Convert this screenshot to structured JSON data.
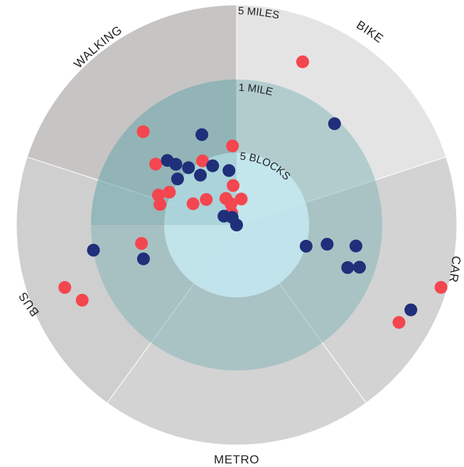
{
  "chart_data": {
    "type": "scatter",
    "subtype": "radial-sector-scatter",
    "categories": [
      "WALKING",
      "BIKE",
      "CAR",
      "METRO",
      "BUS"
    ],
    "ring_labels": [
      "5 BLOCKS",
      "1 MILE",
      "5 MILES"
    ],
    "colors": {
      "red": "#f4464f",
      "blue": "#1f2f7a",
      "sector_light": "#e4e4e4",
      "sector_mid": "#d3d3d3",
      "sector_dark": "#c7c4c4",
      "sector_bus": "#cfcfcf",
      "ring_mid": "#7fb4b8",
      "ring_inner": "#c6e9f1"
    },
    "points": [
      {
        "category": "WALKING",
        "color": "red",
        "r": 0.6,
        "angle": -45
      },
      {
        "category": "WALKING",
        "color": "red",
        "r": 0.46,
        "angle": -53
      },
      {
        "category": "WALKING",
        "color": "blue",
        "r": 0.39,
        "angle": -45
      },
      {
        "category": "WALKING",
        "color": "blue",
        "r": 0.44,
        "angle": -21
      },
      {
        "category": "WALKING",
        "color": "red",
        "r": 0.36,
        "angle": -3
      },
      {
        "category": "WALKING",
        "color": "blue",
        "r": 0.43,
        "angle": -47
      },
      {
        "category": "WALKING",
        "color": "red",
        "r": 0.33,
        "angle": -28
      },
      {
        "category": "WALKING",
        "color": "blue",
        "r": 0.34,
        "angle": -40
      },
      {
        "category": "WALKING",
        "color": "blue",
        "r": 0.29,
        "angle": -22
      },
      {
        "category": "WALKING",
        "color": "blue",
        "r": 0.34,
        "angle": -52
      },
      {
        "category": "WALKING",
        "color": "blue",
        "r": 0.28,
        "angle": -36
      },
      {
        "category": "WALKING",
        "color": "blue",
        "r": 0.25,
        "angle": -8
      },
      {
        "category": "WALKING",
        "color": "red",
        "r": 0.38,
        "angle": -69
      },
      {
        "category": "WALKING",
        "color": "red",
        "r": 0.34,
        "angle": -64
      },
      {
        "category": "WALKING",
        "color": "red",
        "r": 0.36,
        "angle": -75
      },
      {
        "category": "WALKING",
        "color": "red",
        "r": 0.22,
        "angle": -64
      },
      {
        "category": "WALKING",
        "color": "red",
        "r": 0.18,
        "angle": -5
      },
      {
        "category": "WALKING",
        "color": "red",
        "r": 0.13,
        "angle": -22
      },
      {
        "category": "WALKING",
        "color": "red",
        "r": 0.12,
        "angle": 10
      },
      {
        "category": "WALKING",
        "color": "red",
        "r": 0.18,
        "angle": -50
      },
      {
        "category": "WALKING",
        "color": "red",
        "r": 0.1,
        "angle": -15
      },
      {
        "category": "WALKING",
        "color": "red",
        "r": 0.06,
        "angle": -22
      },
      {
        "category": "WALKING",
        "color": "blue",
        "r": 0.07,
        "angle": -55
      },
      {
        "category": "WALKING",
        "color": "blue",
        "r": 0.04,
        "angle": -30
      },
      {
        "category": "BIKE",
        "color": "red",
        "r": 0.8,
        "angle": 22
      },
      {
        "category": "BIKE",
        "color": "blue",
        "r": 0.64,
        "angle": 44
      },
      {
        "category": "BIKE",
        "color": "blue",
        "r": 0.0,
        "angle": 0
      },
      {
        "category": "CAR",
        "color": "blue",
        "r": 0.33,
        "angle": 107
      },
      {
        "category": "CAR",
        "color": "blue",
        "r": 0.42,
        "angle": 102
      },
      {
        "category": "CAR",
        "color": "blue",
        "r": 0.55,
        "angle": 100
      },
      {
        "category": "CAR",
        "color": "blue",
        "r": 0.54,
        "angle": 111
      },
      {
        "category": "CAR",
        "color": "blue",
        "r": 0.59,
        "angle": 109
      },
      {
        "category": "CAR",
        "color": "red",
        "r": 0.97,
        "angle": 107
      },
      {
        "category": "CAR",
        "color": "blue",
        "r": 0.88,
        "angle": 116
      },
      {
        "category": "CAR",
        "color": "red",
        "r": 0.86,
        "angle": 121
      },
      {
        "category": "BUS",
        "color": "red",
        "r": 0.44,
        "angle": -101
      },
      {
        "category": "BUS",
        "color": "blue",
        "r": 0.66,
        "angle": -100
      },
      {
        "category": "BUS",
        "color": "blue",
        "r": 0.45,
        "angle": -110
      },
      {
        "category": "BUS",
        "color": "red",
        "r": 0.83,
        "angle": -110
      },
      {
        "category": "BUS",
        "color": "red",
        "r": 0.78,
        "angle": -116
      }
    ]
  }
}
